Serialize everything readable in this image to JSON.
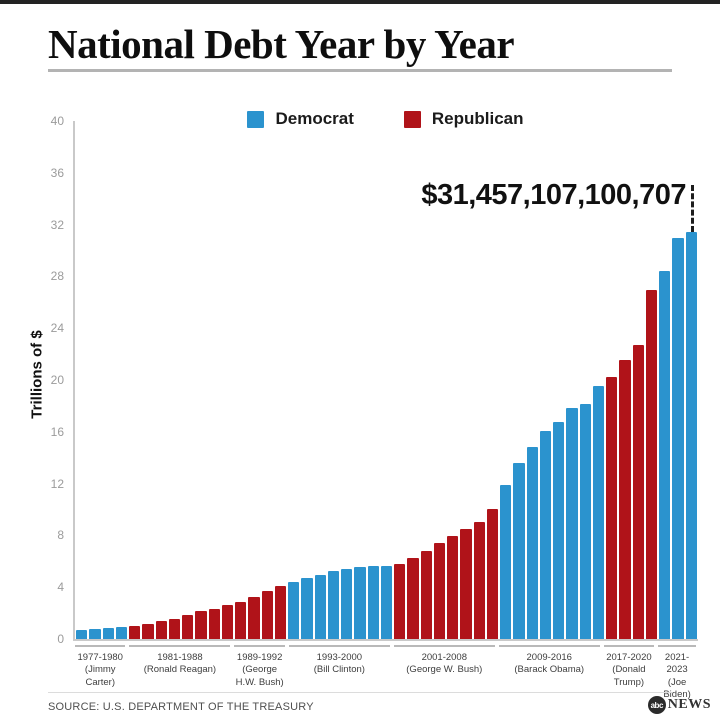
{
  "header": {
    "title": "National Debt Year by Year"
  },
  "legend": {
    "items": [
      {
        "label": "Democrat",
        "color": "#2B93CE"
      },
      {
        "label": "Republican",
        "color": "#B01319"
      }
    ]
  },
  "footer": {
    "source": "SOURCE: U.S. DEPARTMENT OF THE TREASURY",
    "logo": {
      "abc": "abc",
      "news": "NEWS"
    }
  },
  "chart_data": {
    "type": "bar",
    "title": "National Debt Year by Year",
    "xlabel": "",
    "ylabel": "Trillions of $",
    "unit": "trillions of US dollars",
    "ylim": [
      0,
      40
    ],
    "yticks": [
      0,
      4,
      8,
      12,
      16,
      20,
      24,
      28,
      32,
      36,
      40
    ],
    "grid": false,
    "legend_position": "top-center",
    "annotation": {
      "text": "$31,457,107,100,707",
      "points_to_year": 2023,
      "value": 31.457
    },
    "parties": {
      "Democrat": "#2B93CE",
      "Republican": "#B01319"
    },
    "years": [
      1977,
      1978,
      1979,
      1980,
      1981,
      1982,
      1983,
      1984,
      1985,
      1986,
      1987,
      1988,
      1989,
      1990,
      1991,
      1992,
      1993,
      1994,
      1995,
      1996,
      1997,
      1998,
      1999,
      2000,
      2001,
      2002,
      2003,
      2004,
      2005,
      2006,
      2007,
      2008,
      2009,
      2010,
      2011,
      2012,
      2013,
      2014,
      2015,
      2016,
      2017,
      2018,
      2019,
      2020,
      2021,
      2022,
      2023
    ],
    "values": [
      0.7,
      0.77,
      0.83,
      0.91,
      1.0,
      1.14,
      1.38,
      1.57,
      1.82,
      2.13,
      2.35,
      2.6,
      2.86,
      3.23,
      3.67,
      4.07,
      4.41,
      4.69,
      4.97,
      5.22,
      5.41,
      5.53,
      5.66,
      5.67,
      5.81,
      6.23,
      6.78,
      7.38,
      7.93,
      8.51,
      9.01,
      10.02,
      11.91,
      13.56,
      14.79,
      16.07,
      16.74,
      17.82,
      18.15,
      19.57,
      20.24,
      21.52,
      22.72,
      26.95,
      28.43,
      30.93,
      31.46
    ],
    "groups": [
      {
        "years_label": "1977-1980",
        "president": "(Jimmy Carter)",
        "party": "Democrat",
        "count": 4
      },
      {
        "years_label": "1981-1988",
        "president": "(Ronald Reagan)",
        "party": "Republican",
        "count": 8
      },
      {
        "years_label": "1989-1992",
        "president": "(George H.W. Bush)",
        "party": "Republican",
        "count": 4
      },
      {
        "years_label": "1993-2000",
        "president": "(Bill Clinton)",
        "party": "Democrat",
        "count": 8
      },
      {
        "years_label": "2001-2008",
        "president": "(George W. Bush)",
        "party": "Republican",
        "count": 8
      },
      {
        "years_label": "2009-2016",
        "president": "(Barack Obama)",
        "party": "Democrat",
        "count": 8
      },
      {
        "years_label": "2017-2020",
        "president": "(Donald Trump)",
        "party": "Republican",
        "count": 4
      },
      {
        "years_label": "2021-2023",
        "president": "(Joe Biden)",
        "party": "Democrat",
        "count": 3
      }
    ]
  }
}
